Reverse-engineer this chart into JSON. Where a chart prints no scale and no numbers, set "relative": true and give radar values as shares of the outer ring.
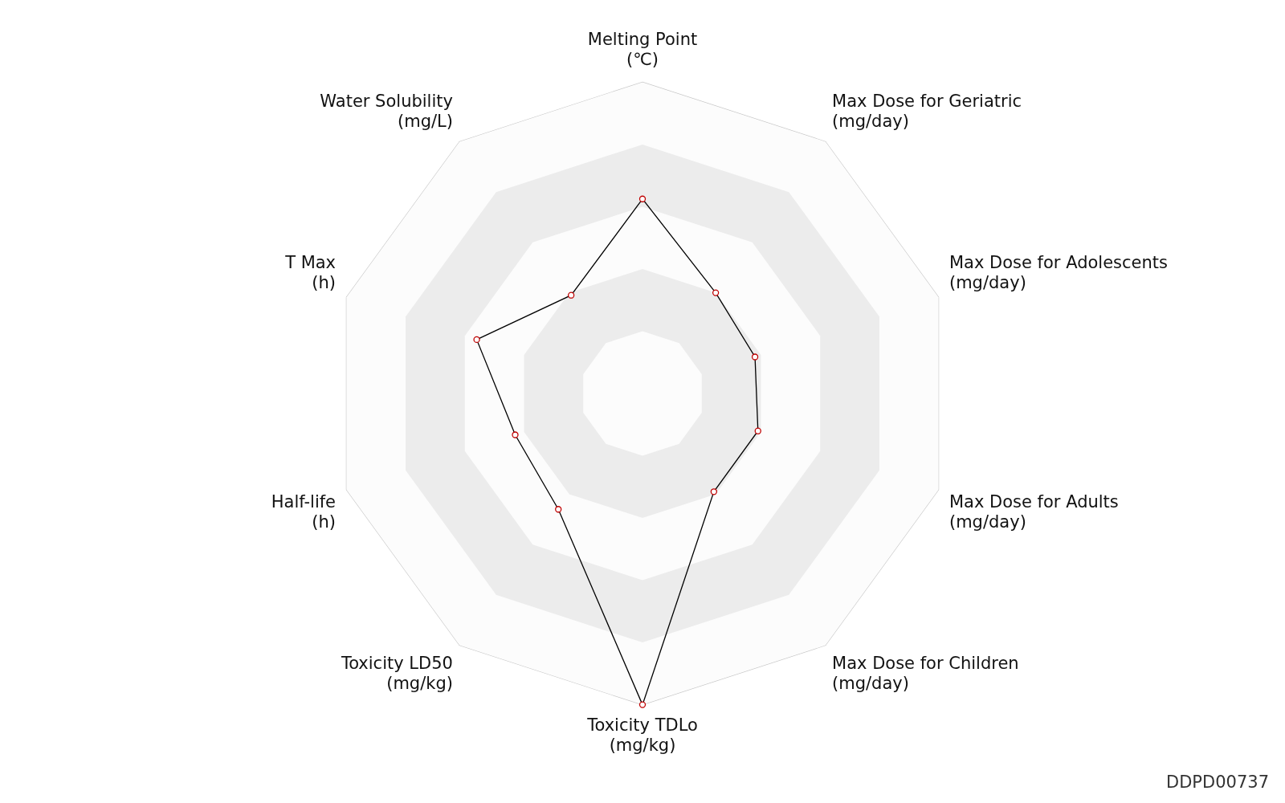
{
  "chart_data": {
    "type": "radar",
    "relative": true,
    "categories": [
      "Melting Point (℃)",
      "Max Dose for Geriatric (mg/day)",
      "Max Dose for Adolescents (mg/day)",
      "Max Dose for Adults (mg/day)",
      "Max Dose for Children (mg/day)",
      "Toxicity TDLo (mg/kg)",
      "Toxicity LD50 (mg/kg)",
      "Half-life (h)",
      "T Max (h)",
      "Water Solubility (mg/L)"
    ],
    "series": [
      {
        "color": "#000000",
        "values": [
          0.625,
          0.4,
          0.38,
          0.39,
          0.39,
          1.0,
          0.46,
          0.43,
          0.56,
          0.39
        ]
      }
    ],
    "marker": "circle",
    "legend": false,
    "annotations": [
      "DDPD00737"
    ]
  }
}
